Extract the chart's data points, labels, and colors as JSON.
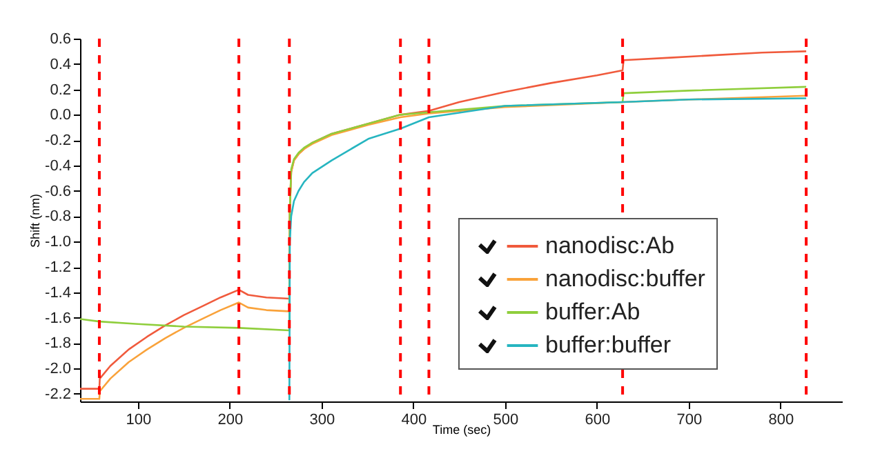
{
  "chart_data": {
    "type": "line",
    "xlabel": "Time (sec)",
    "ylabel": "Shift (nm)",
    "xlim": [
      37,
      867
    ],
    "xticks": [
      100,
      200,
      300,
      400,
      500,
      600,
      700,
      800
    ],
    "ylim": [
      -2.26,
      0.6
    ],
    "yticks": [
      -2.2,
      {
        "value": -2.0,
        "label": "-2.0"
      },
      -1.8,
      -1.6,
      -1.4,
      -1.2,
      {
        "value": -1.0,
        "label": "-1.0"
      },
      -0.8,
      -0.6,
      -0.4,
      -0.2,
      {
        "value": 0,
        "label": "0.0"
      },
      0.2,
      0.4,
      0.6
    ],
    "grid": false,
    "legend": "bottom right",
    "marker": "none",
    "line_style": "solid",
    "series": [
      {
        "name": "nanodisc:Ab",
        "color": "#f05a3c",
        "x": [
          37,
          50,
          58,
          58.5,
          70,
          90,
          110,
          130,
          150,
          170,
          190,
          210,
          220,
          240,
          265,
          265.5,
          267,
          270,
          275,
          281,
          290,
          311,
          351,
          386,
          417,
          450,
          500,
          550,
          600,
          628,
          629,
          680,
          730,
          780,
          828
        ],
        "values": [
          -2.16,
          -2.16,
          -2.16,
          -2.08,
          -1.98,
          -1.85,
          -1.75,
          -1.66,
          -1.58,
          -1.51,
          -1.44,
          -1.38,
          -1.42,
          -1.44,
          -1.45,
          -0.75,
          -0.45,
          -0.36,
          -0.31,
          -0.27,
          -0.22,
          -0.15,
          -0.07,
          0.0,
          0.03,
          0.1,
          0.18,
          0.25,
          0.31,
          0.35,
          0.43,
          0.45,
          0.47,
          0.49,
          0.5
        ]
      },
      {
        "name": "nanodisc:buffer",
        "color": "#f9a23a",
        "x": [
          37,
          50,
          58,
          58.5,
          70,
          90,
          110,
          130,
          150,
          170,
          190,
          210,
          220,
          240,
          265,
          265.5,
          267,
          270,
          275,
          281,
          290,
          311,
          351,
          386,
          417,
          500,
          628,
          700,
          828
        ],
        "values": [
          -2.24,
          -2.24,
          -2.24,
          -2.18,
          -2.08,
          -1.95,
          -1.85,
          -1.76,
          -1.68,
          -1.61,
          -1.54,
          -1.48,
          -1.52,
          -1.54,
          -1.55,
          -0.75,
          -0.45,
          -0.36,
          -0.31,
          -0.27,
          -0.23,
          -0.16,
          -0.08,
          -0.02,
          0.01,
          0.06,
          0.1,
          0.12,
          0.15
        ]
      },
      {
        "name": "buffer:Ab",
        "color": "#8fce3c",
        "x": [
          37,
          58,
          100,
          150,
          210,
          265,
          265.5,
          267,
          270,
          275,
          281,
          290,
          311,
          351,
          386,
          417,
          500,
          628,
          629,
          700,
          828
        ],
        "values": [
          -1.61,
          -1.63,
          -1.65,
          -1.67,
          -1.68,
          -1.7,
          -0.75,
          -0.43,
          -0.35,
          -0.3,
          -0.26,
          -0.22,
          -0.15,
          -0.07,
          0.0,
          0.02,
          0.07,
          0.1,
          0.17,
          0.19,
          0.22
        ]
      },
      {
        "name": "buffer:buffer",
        "color": "#26b5c0",
        "x": [
          265,
          265.5,
          267,
          270,
          275,
          281,
          290,
          311,
          351,
          386,
          417,
          500,
          628,
          700,
          828
        ],
        "values": [
          -2.25,
          -1.0,
          -0.8,
          -0.68,
          -0.6,
          -0.53,
          -0.46,
          -0.36,
          -0.19,
          -0.11,
          -0.02,
          0.07,
          0.1,
          0.12,
          0.13
        ]
      }
    ],
    "ref_lines": [
      {
        "axis": "x",
        "value": 58,
        "color": "#ff0000",
        "line_style": "dashed"
      },
      {
        "axis": "x",
        "value": 210,
        "color": "#ff0000",
        "line_style": "dashed"
      },
      {
        "axis": "x",
        "value": 265,
        "color": "#ff0000",
        "line_style": "dashed"
      },
      {
        "axis": "x",
        "value": 386,
        "color": "#ff0000",
        "line_style": "dashed"
      },
      {
        "axis": "x",
        "value": 417,
        "color": "#ff0000",
        "line_style": "dashed"
      },
      {
        "axis": "x",
        "value": 628,
        "color": "#ff0000",
        "line_style": "dashed"
      },
      {
        "axis": "x",
        "value": 828,
        "color": "#ff0000",
        "line_style": "dashed"
      }
    ]
  }
}
